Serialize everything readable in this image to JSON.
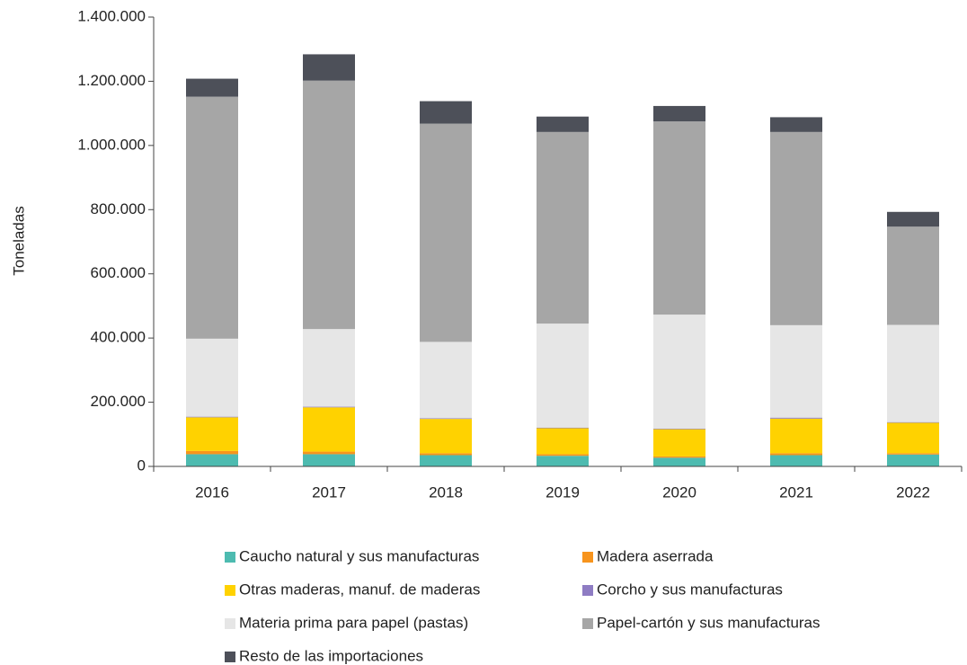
{
  "chart_data": {
    "type": "stacked_bar",
    "y_label": "Toneladas",
    "categories": [
      "2016",
      "2017",
      "2018",
      "2019",
      "2020",
      "2021",
      "2022"
    ],
    "series": [
      {
        "name": "Caucho natural y sus manufacturas",
        "color": "#4dbbb0",
        "values": [
          38000,
          38000,
          35000,
          33000,
          27000,
          35000,
          37000
        ]
      },
      {
        "name": "Madera aserrada",
        "color": "#f7941d",
        "values": [
          10000,
          8000,
          6000,
          5000,
          4000,
          6000,
          4000
        ]
      },
      {
        "name": "Otras maderas, manuf. de maderas",
        "color": "#ffd200",
        "values": [
          105000,
          138000,
          107000,
          81000,
          85000,
          108000,
          95000
        ]
      },
      {
        "name": "Corcho y sus manufacturas",
        "color": "#8e7cc3",
        "values": [
          2000,
          2000,
          2000,
          2000,
          2000,
          3000,
          2000
        ]
      },
      {
        "name": "Materia prima para papel (pastas)",
        "color": "#e6e6e6",
        "values": [
          243000,
          242000,
          238000,
          324000,
          355000,
          288000,
          303000
        ]
      },
      {
        "name": "Papel-cartón y sus manufacturas",
        "color": "#a6a6a6",
        "values": [
          754000,
          774000,
          680000,
          597000,
          602000,
          602000,
          306000
        ]
      },
      {
        "name": "Resto de las importaciones",
        "color": "#4d5059",
        "values": [
          56000,
          82000,
          70000,
          48000,
          48000,
          46000,
          46000
        ]
      }
    ],
    "ylim": [
      0,
      1400000
    ],
    "yticks": [
      0,
      {
        "value": 200000,
        "label": "200.000"
      },
      {
        "value": 400000,
        "label": "400.000"
      },
      {
        "value": 600000,
        "label": "600.000"
      },
      {
        "value": 800000,
        "label": "800.000"
      },
      {
        "value": 1000000,
        "label": "1.000.000"
      },
      {
        "value": 1200000,
        "label": "1.200.000"
      },
      {
        "value": 1400000,
        "label": "1.400.000"
      }
    ]
  }
}
